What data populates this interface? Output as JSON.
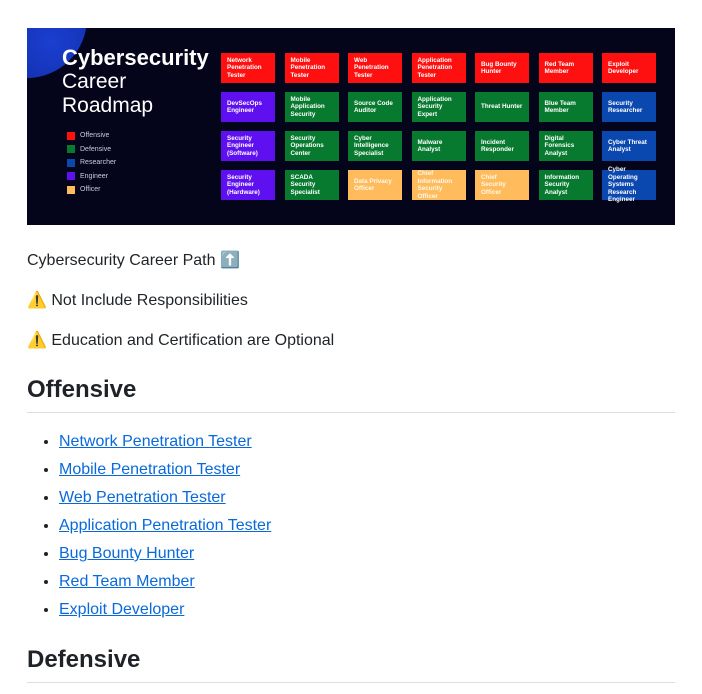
{
  "banner": {
    "title_bold": "Cybersecurity",
    "title_line2": "Career",
    "title_line3": "Roadmap",
    "legend": [
      {
        "label": "Offensive",
        "color": "#ff1010"
      },
      {
        "label": "Defensive",
        "color": "#087a30"
      },
      {
        "label": "Researcher",
        "color": "#0a48b0"
      },
      {
        "label": "Engineer",
        "color": "#5e10f0"
      },
      {
        "label": "Officer",
        "color": "#ffbb5c"
      }
    ],
    "tiles": [
      [
        "Network Penetration Tester",
        "Offensive"
      ],
      [
        "Mobile Penetration Tester",
        "Offensive"
      ],
      [
        "Web Penetration Tester",
        "Offensive"
      ],
      [
        "Application Penetration Tester",
        "Offensive"
      ],
      [
        "Bug Bounty Hunter",
        "Offensive"
      ],
      [
        "Red Team Member",
        "Offensive"
      ],
      [
        "Exploit Developer",
        "Offensive"
      ],
      [
        "DevSecOps Engineer",
        "Engineer"
      ],
      [
        "Mobile Application Security",
        "Defensive"
      ],
      [
        "Source Code Auditor",
        "Defensive"
      ],
      [
        "Application Security Expert",
        "Defensive"
      ],
      [
        "Threat Hunter",
        "Defensive"
      ],
      [
        "Blue Team Member",
        "Defensive"
      ],
      [
        "Security Researcher",
        "Researcher"
      ],
      [
        "Security Engineer (Software)",
        "Engineer"
      ],
      [
        "Security Operations Center",
        "Defensive"
      ],
      [
        "Cyber Intelligence Specialist",
        "Defensive"
      ],
      [
        "Malware Analyst",
        "Defensive"
      ],
      [
        "Incident Responder",
        "Defensive"
      ],
      [
        "Digital Forensics Analyst",
        "Defensive"
      ],
      [
        "Cyber Threat Analyst",
        "Researcher"
      ],
      [
        "Security Engineer (Hardware)",
        "Engineer"
      ],
      [
        "SCADA Security Specialist",
        "Defensive"
      ],
      [
        "Data Privacy Officer",
        "Officer"
      ],
      [
        "Chief Information Security Officer",
        "Officer"
      ],
      [
        "Chief Security Officer",
        "Officer"
      ],
      [
        "Information Security Analyst",
        "Defensive"
      ],
      [
        "Cyber Operating Systems Research Engineer",
        "Researcher"
      ]
    ]
  },
  "intro": {
    "line1": "Cybersecurity Career Path",
    "line1_emoji": "⬆️",
    "warn_emoji": "⚠️",
    "line2": "Not Include Responsibilities",
    "line3": "Education and Certification are Optional"
  },
  "sections": [
    {
      "heading": "Offensive",
      "items": [
        "Network Penetration Tester",
        "Mobile Penetration Tester",
        "Web Penetration Tester",
        "Application Penetration Tester",
        "Bug Bounty Hunter",
        "Red Team Member",
        "Exploit Developer"
      ]
    },
    {
      "heading": "Defensive"
    }
  ]
}
